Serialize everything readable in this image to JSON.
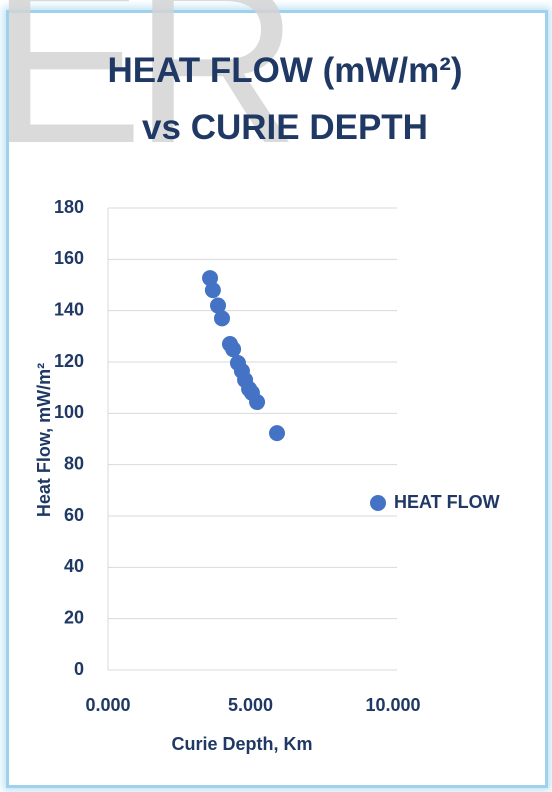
{
  "chart_data": {
    "type": "scatter",
    "watermark": "ER",
    "title": "HEAT FLOW (mW/m²) vs CURIE DEPTH",
    "x_label": "Curie Depth, Km",
    "y_label": "Heat Flow, mW/m²",
    "x": [
      3.58,
      3.68,
      3.86,
      4.0,
      4.28,
      4.39,
      4.56,
      4.7,
      4.81,
      4.95,
      5.05,
      5.23,
      5.93
    ],
    "series": [
      {
        "name": "HEAT FLOW",
        "color": "#4472c4",
        "values": [
          152.7,
          148,
          142,
          137,
          127,
          125,
          119.6,
          116.5,
          113,
          109.5,
          108,
          104.4,
          92.3
        ]
      }
    ],
    "xlim": [
      0,
      10
    ],
    "xticks": [
      {
        "value": 0,
        "label": "0.000"
      },
      {
        "value": 5,
        "label": "5.000"
      },
      {
        "value": 10,
        "label": "10.000"
      }
    ],
    "ylim": [
      0,
      180
    ],
    "yticks": [
      0,
      20,
      40,
      60,
      80,
      100,
      120,
      140,
      160,
      180
    ],
    "grid": true,
    "legend": "right"
  }
}
